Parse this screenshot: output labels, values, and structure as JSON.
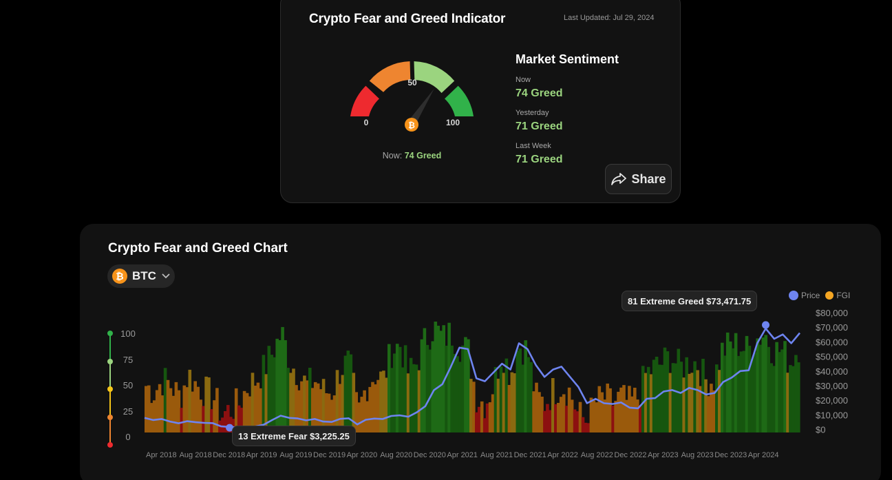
{
  "indicator": {
    "title": "Crypto Fear and Greed Indicator",
    "last_updated": "Last Updated: Jul 29, 2024",
    "gauge": {
      "min_label": "0",
      "mid_label": "50",
      "max_label": "100",
      "value": 74,
      "now_prefix": "Now:",
      "now_value": "74 Greed",
      "segment_colors": [
        "#ee2a2f",
        "#ee8530",
        "#9bd47f",
        "#31b24a"
      ]
    },
    "sentiment": {
      "title": "Market Sentiment",
      "now_label": "Now",
      "now_value": "74 Greed",
      "yesterday_label": "Yesterday",
      "yesterday_value": "71 Greed",
      "last_week_label": "Last Week",
      "last_week_value": "71 Greed"
    },
    "share_label": "Share"
  },
  "chart": {
    "title": "Crypto Fear and Greed Chart",
    "coin": "BTC",
    "legend": {
      "price": "Price",
      "fgi": "FGI",
      "price_color": "#6e84f0",
      "fgi_color": "#f5a623"
    },
    "tooltip_high": "81 Extreme Greed $73,471.75",
    "tooltip_low": "13 Extreme Fear $3,225.25",
    "fgi_scale_labels": [
      "100",
      "75",
      "50",
      "25",
      "0"
    ],
    "fgi_scale_colors": [
      "#31b24a",
      "#9bd47f",
      "#f5c518",
      "#ee8530",
      "#ee2a2f"
    ]
  },
  "chart_data": {
    "type": "area",
    "x_tick_labels": [
      "Apr 2018",
      "Aug 2018",
      "Dec 2018",
      "Apr 2019",
      "Aug 2019",
      "Dec 2019",
      "Apr 2020",
      "Aug 2020",
      "Dec 2020",
      "Apr 2021",
      "Aug 2021",
      "Dec 2021",
      "Apr 2022",
      "Aug 2022",
      "Dec 2022",
      "Apr 2023",
      "Aug 2023",
      "Dec 2023",
      "Apr 2024"
    ],
    "y_left_ticks": [
      "100",
      "75",
      "50",
      "25",
      "0"
    ],
    "y_right_ticks": [
      "$80,000",
      "$70,000",
      "$60,000",
      "$50,000",
      "$40,000",
      "$30,000",
      "$20,000",
      "$10,000",
      "$0"
    ],
    "y_right_range": [
      0,
      80000
    ],
    "y_left_range": [
      0,
      100
    ],
    "series": [
      {
        "name": "Price",
        "color": "#6e84f0",
        "x": [
          "2018-02",
          "2018-03",
          "2018-04",
          "2018-05",
          "2018-06",
          "2018-07",
          "2018-08",
          "2018-09",
          "2018-10",
          "2018-11",
          "2018-12",
          "2019-01",
          "2019-02",
          "2019-03",
          "2019-04",
          "2019-05",
          "2019-06",
          "2019-07",
          "2019-08",
          "2019-09",
          "2019-10",
          "2019-11",
          "2019-12",
          "2020-01",
          "2020-02",
          "2020-03",
          "2020-04",
          "2020-05",
          "2020-06",
          "2020-07",
          "2020-08",
          "2020-09",
          "2020-10",
          "2020-11",
          "2020-12",
          "2021-01",
          "2021-02",
          "2021-03",
          "2021-04",
          "2021-05",
          "2021-06",
          "2021-07",
          "2021-08",
          "2021-09",
          "2021-10",
          "2021-11",
          "2021-12",
          "2022-01",
          "2022-02",
          "2022-03",
          "2022-04",
          "2022-05",
          "2022-06",
          "2022-07",
          "2022-08",
          "2022-09",
          "2022-10",
          "2022-11",
          "2022-12",
          "2023-01",
          "2023-02",
          "2023-03",
          "2023-04",
          "2023-05",
          "2023-06",
          "2023-07",
          "2023-08",
          "2023-09",
          "2023-10",
          "2023-11",
          "2023-12",
          "2024-01",
          "2024-02",
          "2024-03",
          "2024-04",
          "2024-05",
          "2024-06",
          "2024-07"
        ],
        "values": [
          10000,
          8500,
          9200,
          7500,
          6300,
          7700,
          7000,
          6600,
          6400,
          4200,
          3700,
          3500,
          3900,
          4100,
          5300,
          8500,
          11500,
          10000,
          9600,
          8300,
          9200,
          7500,
          7200,
          9300,
          9700,
          5500,
          8700,
          9500,
          9200,
          11300,
          11700,
          10800,
          13800,
          18000,
          28900,
          33000,
          45000,
          58000,
          57000,
          37000,
          35000,
          41000,
          47000,
          43000,
          61000,
          57000,
          46000,
          38000,
          43000,
          45000,
          38000,
          31000,
          20000,
          23000,
          20000,
          19500,
          20500,
          17000,
          16500,
          23000,
          23500,
          28000,
          29000,
          27000,
          30500,
          29000,
          26000,
          27000,
          34500,
          37500,
          42000,
          42500,
          61000,
          71000,
          64000,
          67000,
          61000,
          68000
        ]
      },
      {
        "name": "FGI",
        "color": "#f5a623",
        "x": [
          "2018-02",
          "2018-03",
          "2018-04",
          "2018-05",
          "2018-06",
          "2018-07",
          "2018-08",
          "2018-09",
          "2018-10",
          "2018-11",
          "2018-12",
          "2019-01",
          "2019-02",
          "2019-03",
          "2019-04",
          "2019-05",
          "2019-06",
          "2019-07",
          "2019-08",
          "2019-09",
          "2019-10",
          "2019-11",
          "2019-12",
          "2020-01",
          "2020-02",
          "2020-03",
          "2020-04",
          "2020-05",
          "2020-06",
          "2020-07",
          "2020-08",
          "2020-09",
          "2020-10",
          "2020-11",
          "2020-12",
          "2021-01",
          "2021-02",
          "2021-03",
          "2021-04",
          "2021-05",
          "2021-06",
          "2021-07",
          "2021-08",
          "2021-09",
          "2021-10",
          "2021-11",
          "2021-12",
          "2022-01",
          "2022-02",
          "2022-03",
          "2022-04",
          "2022-05",
          "2022-06",
          "2022-07",
          "2022-08",
          "2022-09",
          "2022-10",
          "2022-11",
          "2022-12",
          "2023-01",
          "2023-02",
          "2023-03",
          "2023-04",
          "2023-05",
          "2023-06",
          "2023-07",
          "2023-08",
          "2023-09",
          "2023-10",
          "2023-11",
          "2023-12",
          "2024-01",
          "2024-02",
          "2024-03",
          "2024-04",
          "2024-05",
          "2024-06",
          "2024-07"
        ],
        "values": [
          40,
          35,
          45,
          40,
          30,
          50,
          40,
          35,
          30,
          15,
          20,
          25,
          40,
          45,
          55,
          70,
          85,
          60,
          50,
          40,
          45,
          35,
          35,
          55,
          60,
          15,
          40,
          50,
          45,
          70,
          75,
          50,
          60,
          80,
          90,
          80,
          85,
          75,
          70,
          30,
          25,
          40,
          70,
          50,
          75,
          70,
          30,
          25,
          35,
          40,
          35,
          15,
          10,
          25,
          30,
          25,
          30,
          25,
          30,
          50,
          55,
          60,
          65,
          55,
          60,
          60,
          45,
          45,
          70,
          75,
          75,
          70,
          80,
          85,
          70,
          70,
          60,
          74
        ]
      }
    ],
    "annotations": [
      {
        "label": "81 Extreme Greed $73,471.75",
        "x": "2024-03",
        "fgi": 81,
        "price": 73471.75
      },
      {
        "label": "13 Extreme Fear $3,225.25",
        "x": "2018-12",
        "fgi": 13,
        "price": 3225.25
      }
    ],
    "legend_position": "top-right",
    "grid": false
  }
}
